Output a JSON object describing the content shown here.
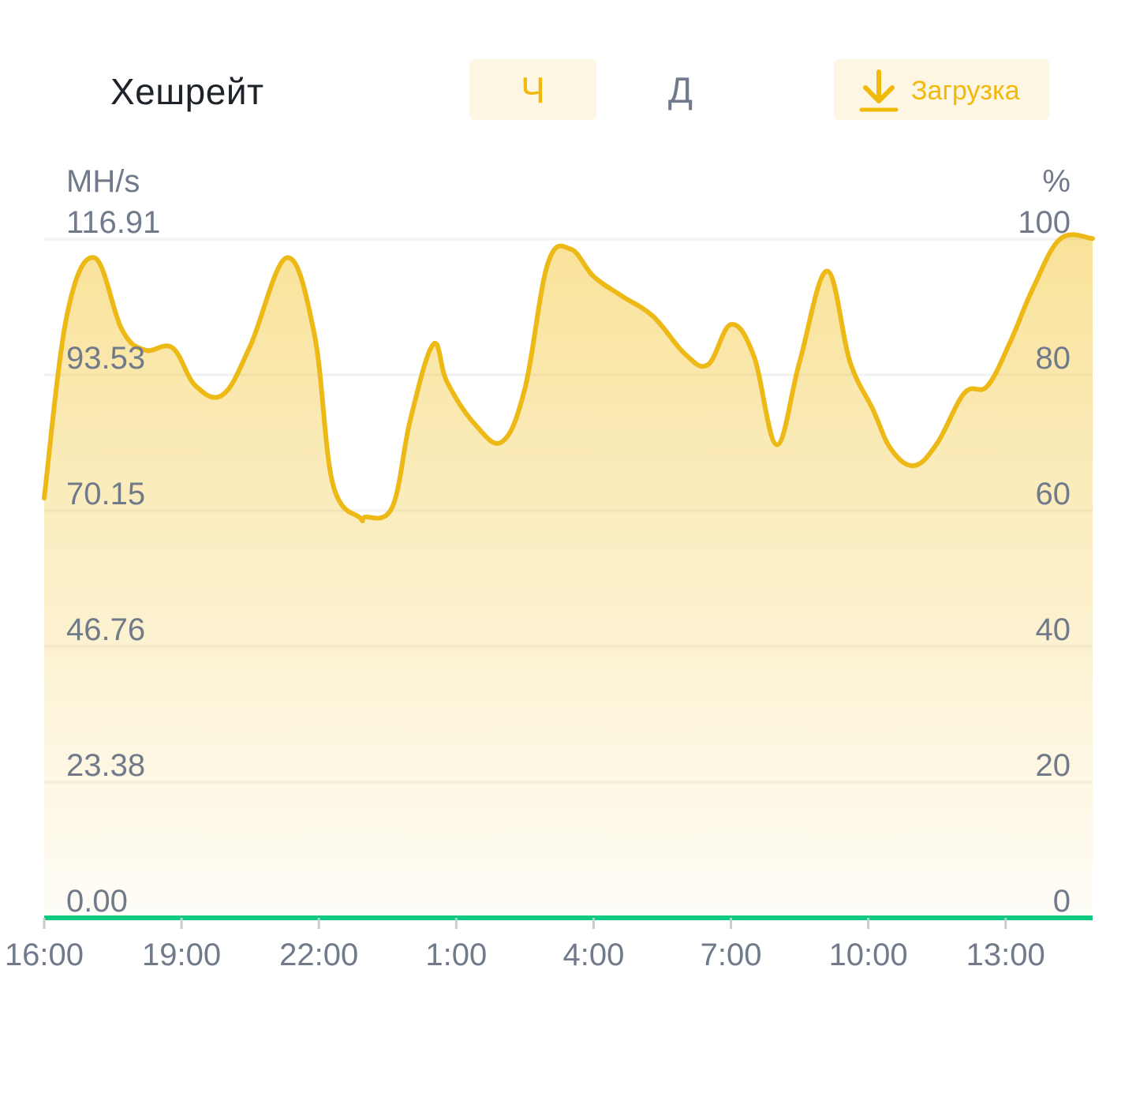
{
  "header": {
    "title": "Хешрейт",
    "tabs": [
      {
        "label": "Ч",
        "active": true
      },
      {
        "label": "Д",
        "active": false
      }
    ],
    "download": {
      "label": "Загрузка",
      "icon": "download-icon"
    }
  },
  "colors": {
    "accent": "#F0B90B",
    "accent_bg": "#FDF6E3",
    "line": "#EDB917",
    "baseline": "#0ECB81",
    "text_primary": "#1E2329",
    "text_secondary": "#707A8A"
  },
  "chart_data": {
    "type": "area",
    "title": "Хешрейт",
    "ylabel_left": "MH/s",
    "ylabel_right": "%",
    "ylim_left": [
      0,
      116.91
    ],
    "ylim_right": [
      0,
      100
    ],
    "yticks_left": [
      "0.00",
      "23.38",
      "46.76",
      "70.15",
      "93.53",
      "116.91"
    ],
    "yticks_right": [
      "0",
      "20",
      "40",
      "60",
      "80",
      "100"
    ],
    "x_range_hours": [
      0,
      22.9
    ],
    "xticks": [
      {
        "label": "16:00",
        "hour": 0
      },
      {
        "label": "19:00",
        "hour": 3
      },
      {
        "label": "22:00",
        "hour": 6
      },
      {
        "label": "1:00",
        "hour": 9
      },
      {
        "label": "4:00",
        "hour": 12
      },
      {
        "label": "7:00",
        "hour": 15
      },
      {
        "label": "10:00",
        "hour": 18
      },
      {
        "label": "13:00",
        "hour": 21
      }
    ],
    "grid": true,
    "series": [
      {
        "values_hour": [
          0,
          0.5,
          1.1,
          1.7,
          2.2,
          2.8,
          3.3,
          3.9,
          4.5,
          5.3,
          5.9,
          6.3,
          6.9,
          7.0,
          7.6,
          8.0,
          8.5,
          8.8,
          9.4,
          10.0,
          10.5,
          11.0,
          11.5,
          12.0,
          12.6,
          13.3,
          14.0,
          14.5,
          15.0,
          15.5,
          16.0,
          16.5,
          17.1,
          17.6,
          18.1,
          18.5,
          19.0,
          19.5,
          20.1,
          20.6,
          21.1,
          21.6,
          22.2,
          22.9
        ],
        "values": [
          72.3,
          103.9,
          113.7,
          101.3,
          97.8,
          98.2,
          91.7,
          90.1,
          98.5,
          113.7,
          100.6,
          74.9,
          68.9,
          69.0,
          70.7,
          85.9,
          98.8,
          92.3,
          85.1,
          82.0,
          91.2,
          112.7,
          115.2,
          110.5,
          107.2,
          103.6,
          97.1,
          95.3,
          102.2,
          96.8,
          81.5,
          95.8,
          111.4,
          95.8,
          87.6,
          80.7,
          77.9,
          81.7,
          90.4,
          91.6,
          99.2,
          108.5,
          117.0,
          117.0
        ]
      }
    ]
  }
}
